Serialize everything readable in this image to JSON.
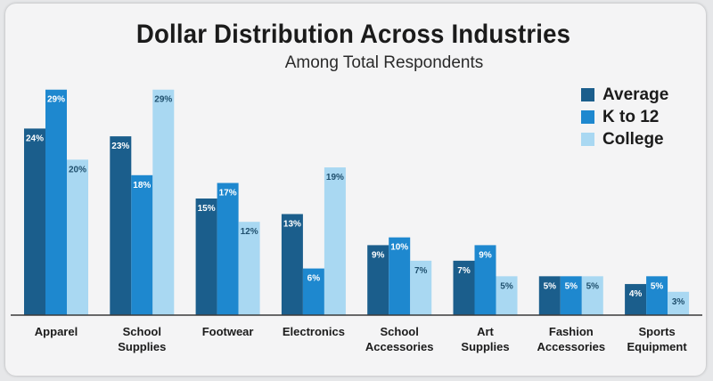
{
  "chart_data": {
    "type": "bar",
    "title": "Dollar Distribution Across Industries",
    "subtitle": "Among Total Respondents",
    "categories": [
      "Apparel",
      "School Supplies",
      "Footwear",
      "Electronics",
      "School Accessories",
      "Art Supplies",
      "Fashion Accessories",
      "Sports Equipment"
    ],
    "series": [
      {
        "name": "Average",
        "color": "#1b5e8c",
        "values": [
          24,
          23,
          15,
          13,
          9,
          7,
          5,
          4
        ],
        "labels": [
          "24%",
          "23%",
          "15%",
          "13%",
          "9%",
          "7%",
          "5%",
          "4%"
        ]
      },
      {
        "name": "K to 12",
        "color": "#1e88cf",
        "values": [
          29,
          18,
          17,
          6,
          10,
          9,
          5,
          5
        ],
        "labels": [
          "29%",
          "18%",
          "17%",
          "6%",
          "10%",
          "9%",
          "5%",
          "5%"
        ]
      },
      {
        "name": "College",
        "color": "#a9d8f2",
        "values": [
          20,
          29,
          12,
          19,
          7,
          5,
          5,
          3
        ],
        "labels": [
          "20%",
          "29%",
          "12%",
          "19%",
          "7%",
          "5%",
          "5%",
          "3%"
        ]
      }
    ],
    "ylim": [
      0,
      30
    ],
    "legend_position": "top-right",
    "grid": false
  }
}
